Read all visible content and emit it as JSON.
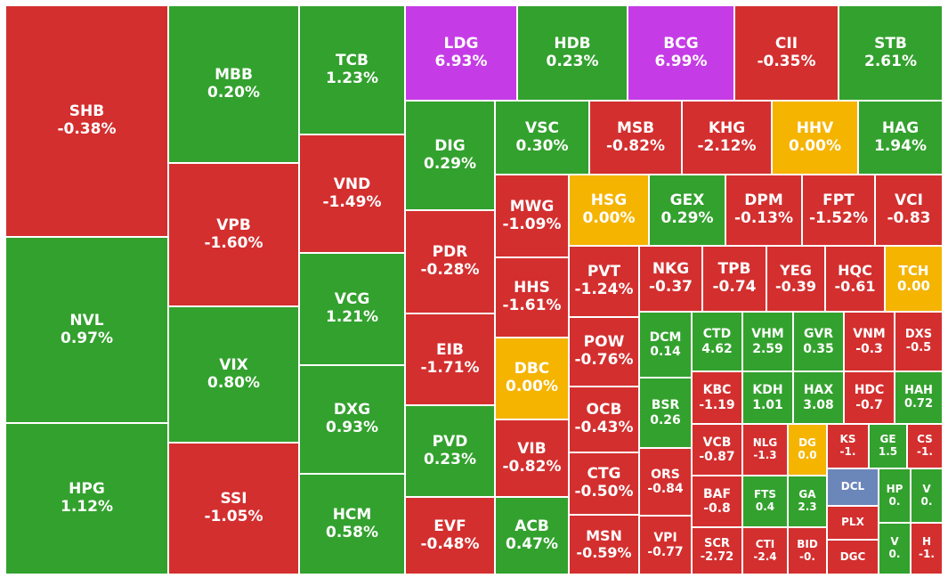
{
  "colors": {
    "up": "#33a12e",
    "down": "#d32f2f",
    "flat": "#f5b400",
    "ceiling": "#c53ce6",
    "floor": "#6b86b9"
  },
  "chart_data": {
    "type": "treemap",
    "title": "",
    "tiles": [
      {
        "symbol": "SHB",
        "change": "-0.38%",
        "status": "down"
      },
      {
        "symbol": "NVL",
        "change": "0.97%",
        "status": "up"
      },
      {
        "symbol": "HPG",
        "change": "1.12%",
        "status": "up"
      },
      {
        "symbol": "MBB",
        "change": "0.20%",
        "status": "up"
      },
      {
        "symbol": "VPB",
        "change": "-1.60%",
        "status": "down"
      },
      {
        "symbol": "VIX",
        "change": "0.80%",
        "status": "up"
      },
      {
        "symbol": "SSI",
        "change": "-1.05%",
        "status": "down"
      },
      {
        "symbol": "TCB",
        "change": "1.23%",
        "status": "up"
      },
      {
        "symbol": "VND",
        "change": "-1.49%",
        "status": "down"
      },
      {
        "symbol": "VCG",
        "change": "1.21%",
        "status": "up"
      },
      {
        "symbol": "DXG",
        "change": "0.93%",
        "status": "up"
      },
      {
        "symbol": "HCM",
        "change": "0.58%",
        "status": "up"
      },
      {
        "symbol": "LDG",
        "change": "6.93%",
        "status": "ceiling"
      },
      {
        "symbol": "HDB",
        "change": "0.23%",
        "status": "up"
      },
      {
        "symbol": "BCG",
        "change": "6.99%",
        "status": "ceiling"
      },
      {
        "symbol": "CII",
        "change": "-0.35%",
        "status": "down"
      },
      {
        "symbol": "STB",
        "change": "2.61%",
        "status": "up"
      },
      {
        "symbol": "DIG",
        "change": "0.29%",
        "status": "up"
      },
      {
        "symbol": "PDR",
        "change": "-0.28%",
        "status": "down"
      },
      {
        "symbol": "EIB",
        "change": "-1.71%",
        "status": "down"
      },
      {
        "symbol": "PVD",
        "change": "0.23%",
        "status": "up"
      },
      {
        "symbol": "EVF",
        "change": "-0.48%",
        "status": "down"
      },
      {
        "symbol": "VSC",
        "change": "0.30%",
        "status": "up"
      },
      {
        "symbol": "MSB",
        "change": "-0.82%",
        "status": "down"
      },
      {
        "symbol": "KHG",
        "change": "-2.12%",
        "status": "down"
      },
      {
        "symbol": "HHV",
        "change": "0.00%",
        "status": "flat"
      },
      {
        "symbol": "HAG",
        "change": "1.94%",
        "status": "up"
      },
      {
        "symbol": "MWG",
        "change": "-1.09%",
        "status": "down"
      },
      {
        "symbol": "HSG",
        "change": "0.00%",
        "status": "flat"
      },
      {
        "symbol": "GEX",
        "change": "0.29%",
        "status": "up"
      },
      {
        "symbol": "DPM",
        "change": "-0.13%",
        "status": "down"
      },
      {
        "symbol": "FPT",
        "change": "-1.52%",
        "status": "down"
      },
      {
        "symbol": "VCI",
        "change": "-0.83",
        "status": "down"
      },
      {
        "symbol": "HHS",
        "change": "-1.61%",
        "status": "down"
      },
      {
        "symbol": "DBC",
        "change": "0.00%",
        "status": "flat"
      },
      {
        "symbol": "VIB",
        "change": "-0.82%",
        "status": "down"
      },
      {
        "symbol": "ACB",
        "change": "0.47%",
        "status": "up"
      },
      {
        "symbol": "PVT",
        "change": "-1.24%",
        "status": "down"
      },
      {
        "symbol": "POW",
        "change": "-0.76%",
        "status": "down"
      },
      {
        "symbol": "OCB",
        "change": "-0.43%",
        "status": "down"
      },
      {
        "symbol": "CTG",
        "change": "-0.50%",
        "status": "down"
      },
      {
        "symbol": "MSN",
        "change": "-0.59%",
        "status": "down"
      },
      {
        "symbol": "NKG",
        "change": "-0.37",
        "status": "down"
      },
      {
        "symbol": "TPB",
        "change": "-0.74",
        "status": "down"
      },
      {
        "symbol": "YEG",
        "change": "-0.39",
        "status": "down"
      },
      {
        "symbol": "HQC",
        "change": "-0.61",
        "status": "down"
      },
      {
        "symbol": "TCH",
        "change": "0.00",
        "status": "flat"
      },
      {
        "symbol": "DCM",
        "change": "0.14",
        "status": "up"
      },
      {
        "symbol": "BSR",
        "change": "0.26",
        "status": "up"
      },
      {
        "symbol": "ORS",
        "change": "-0.84",
        "status": "down"
      },
      {
        "symbol": "VPI",
        "change": "-0.77",
        "status": "down"
      },
      {
        "symbol": "CTD",
        "change": "4.62",
        "status": "up"
      },
      {
        "symbol": "VHM",
        "change": "2.59",
        "status": "up"
      },
      {
        "symbol": "GVR",
        "change": "0.35",
        "status": "up"
      },
      {
        "symbol": "VNM",
        "change": "-0.3",
        "status": "down"
      },
      {
        "symbol": "DXS",
        "change": "-0.5",
        "status": "down"
      },
      {
        "symbol": "KBC",
        "change": "-1.19",
        "status": "down"
      },
      {
        "symbol": "KDH",
        "change": "1.01",
        "status": "up"
      },
      {
        "symbol": "HAX",
        "change": "3.08",
        "status": "up"
      },
      {
        "symbol": "HDC",
        "change": "-0.7",
        "status": "down"
      },
      {
        "symbol": "HAH",
        "change": "0.72",
        "status": "up"
      },
      {
        "symbol": "VCB",
        "change": "-0.87",
        "status": "down"
      },
      {
        "symbol": "NLG",
        "change": "-1.3",
        "status": "down"
      },
      {
        "symbol": "DG",
        "change": "0.0",
        "status": "flat"
      },
      {
        "symbol": "KS",
        "change": "-1.",
        "status": "down"
      },
      {
        "symbol": "GE",
        "change": "1.5",
        "status": "up"
      },
      {
        "symbol": "CS",
        "change": "-1.",
        "status": "down"
      },
      {
        "symbol": "BAF",
        "change": "-0.8",
        "status": "down"
      },
      {
        "symbol": "FTS",
        "change": "0.4",
        "status": "up"
      },
      {
        "symbol": "GA",
        "change": "2.3",
        "status": "up"
      },
      {
        "symbol": "DCL",
        "change": "",
        "status": "floor"
      },
      {
        "symbol": "HP",
        "change": "0.",
        "status": "up"
      },
      {
        "symbol": "V",
        "change": "0.",
        "status": "up"
      },
      {
        "symbol": "PLX",
        "change": "",
        "status": "down"
      },
      {
        "symbol": "SCR",
        "change": "-2.72",
        "status": "down"
      },
      {
        "symbol": "CTI",
        "change": "-2.4",
        "status": "down"
      },
      {
        "symbol": "BID",
        "change": "-0.",
        "status": "down"
      },
      {
        "symbol": "DGC",
        "change": "",
        "status": "down"
      },
      {
        "symbol": "V",
        "change": "0.",
        "status": "up"
      },
      {
        "symbol": "H",
        "change": "-1.",
        "status": "down"
      }
    ]
  }
}
